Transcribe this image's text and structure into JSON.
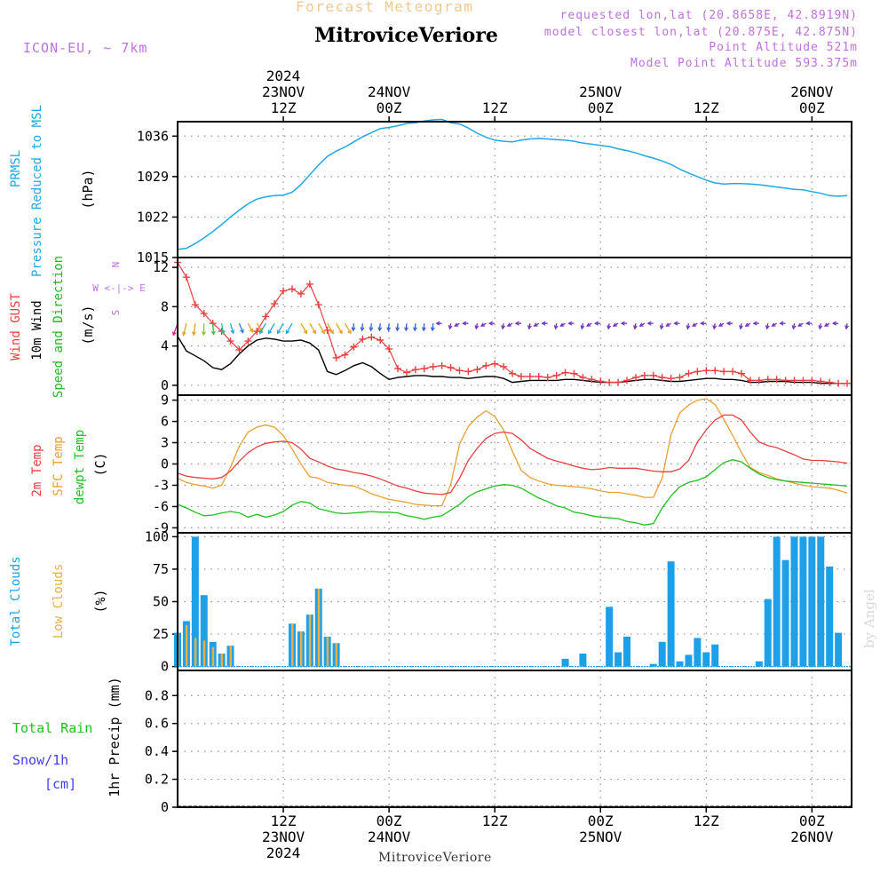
{
  "header": {
    "title_top": "Forecast Meteogram",
    "location": "MitroviceVeriore",
    "model": "ICON-EU, ~ 7km",
    "requested": "requested lon,lat (20.8658E, 42.8919N)",
    "closest": "model closest lon,lat (20.875E, 42.875N)",
    "point_alt": "Point Altitude 521m",
    "model_alt": "Model Point Altitude 593.375m",
    "footer_location": "MitroviceVeriore",
    "credit": "by Angel"
  },
  "time_axis": {
    "top_ticks": [
      {
        "h": 12,
        "l1": "2024",
        "l2": "23NOV",
        "l3": "12Z"
      },
      {
        "h": 24,
        "l1": "",
        "l2": "24NOV",
        "l3": "00Z"
      },
      {
        "h": 36,
        "l1": "",
        "l2": "",
        "l3": "12Z"
      },
      {
        "h": 48,
        "l1": "",
        "l2": "25NOV",
        "l3": "00Z"
      },
      {
        "h": 60,
        "l1": "",
        "l2": "",
        "l3": "12Z"
      },
      {
        "h": 72,
        "l1": "",
        "l2": "26NOV",
        "l3": "00Z"
      }
    ],
    "bottom_ticks": [
      {
        "h": 12,
        "l1": "12Z",
        "l2": "23NOV",
        "l3": "2024"
      },
      {
        "h": 24,
        "l1": "00Z",
        "l2": "24NOV",
        "l3": ""
      },
      {
        "h": 36,
        "l1": "12Z",
        "l2": "",
        "l3": ""
      },
      {
        "h": 48,
        "l1": "00Z",
        "l2": "25NOV",
        "l3": ""
      },
      {
        "h": 60,
        "l1": "12Z",
        "l2": "",
        "l3": ""
      },
      {
        "h": 72,
        "l1": "00Z",
        "l2": "26NOV",
        "l3": ""
      }
    ],
    "hours_range": [
      0,
      76.5
    ]
  },
  "colors": {
    "pressure": "#1ea8e8",
    "gust": "#e84040",
    "wind": "#000000",
    "direction": "#20b820",
    "temp2m": "#e84040",
    "sfc": "#e8a030",
    "dewpt": "#20c020",
    "total_clouds": "#1ea0e8",
    "low_clouds": "#e8b040",
    "rain": "#20c020",
    "snow": "#4040e8",
    "meta": "#c070e0",
    "title_top": "#f0c890",
    "axis": "#000000",
    "grid": "#909090"
  },
  "panels": {
    "pressure": {
      "labels": [
        "PRMSL",
        "Pressure Reduced to MSL"
      ],
      "unit": "(hPa)"
    },
    "wind": {
      "labels": [
        "Wind GUST",
        "10m Wind",
        "Speed and Direction"
      ],
      "unit": "(m/s)",
      "compass": [
        "N",
        "W <-|-> E",
        "S"
      ]
    },
    "temp": {
      "labels": [
        "2m Temp",
        "SFC Temp",
        "dewpt Temp"
      ],
      "unit": "(C)"
    },
    "clouds": {
      "labels": [
        "Total Clouds",
        "Low Clouds"
      ],
      "unit": "(%)"
    },
    "precip": {
      "labels": [
        "Total   Rain",
        "Snow/1h",
        "[cm]"
      ],
      "unit": "1hr Precip (mm)"
    }
  },
  "chart_data": [
    {
      "type": "line",
      "title": "PRMSL Pressure Reduced to MSL",
      "ylabel": "(hPa)",
      "ylim": [
        1015,
        1038.5
      ],
      "yticks": [
        1015,
        1022,
        1029,
        1036
      ],
      "x_hours": [
        0,
        1,
        2,
        3,
        4,
        5,
        6,
        7,
        8,
        9,
        10,
        11,
        12,
        13,
        14,
        15,
        16,
        17,
        18,
        19,
        20,
        21,
        22,
        23,
        24,
        25,
        26,
        27,
        28,
        29,
        30,
        31,
        32,
        33,
        34,
        35,
        36,
        37,
        38,
        39,
        40,
        41,
        42,
        43,
        44,
        45,
        46,
        47,
        48,
        49,
        50,
        51,
        52,
        53,
        54,
        55,
        56,
        57,
        58,
        59,
        60,
        61,
        62,
        63,
        64,
        65,
        66,
        67,
        68,
        69,
        70,
        71,
        72,
        73,
        74,
        75,
        76
      ],
      "series": [
        {
          "name": "PRMSL",
          "values": [
            1016.4,
            1016.6,
            1017.4,
            1018.4,
            1019.5,
            1020.7,
            1022.0,
            1023.2,
            1024.3,
            1025.1,
            1025.5,
            1025.7,
            1025.8,
            1026.3,
            1027.6,
            1029.3,
            1031.0,
            1032.5,
            1033.4,
            1034.1,
            1035.0,
            1035.9,
            1036.6,
            1037.3,
            1037.5,
            1037.8,
            1038.2,
            1038.3,
            1038.6,
            1038.8,
            1038.9,
            1038.3,
            1038.1,
            1037.4,
            1036.5,
            1035.8,
            1035.3,
            1035.1,
            1035.0,
            1035.3,
            1035.5,
            1035.6,
            1035.5,
            1035.4,
            1035.3,
            1035.1,
            1034.8,
            1034.6,
            1034.4,
            1034.2,
            1033.8,
            1033.5,
            1033.1,
            1032.6,
            1032.2,
            1031.7,
            1031.1,
            1030.3,
            1029.6,
            1029.0,
            1028.4,
            1027.9,
            1027.7,
            1027.8,
            1027.8,
            1027.7,
            1027.6,
            1027.4,
            1027.2,
            1027.0,
            1026.8,
            1026.7,
            1026.4,
            1026.1,
            1025.7,
            1025.6,
            1025.7
          ]
        }
      ]
    },
    {
      "type": "line",
      "title": "Wind GUST / 10m Wind Speed and Direction",
      "ylabel": "(m/s)",
      "ylim": [
        -1,
        13
      ],
      "yticks": [
        0,
        4,
        8,
        12
      ],
      "x_hours": [
        0,
        1,
        2,
        3,
        4,
        5,
        6,
        7,
        8,
        9,
        10,
        11,
        12,
        13,
        14,
        15,
        16,
        17,
        18,
        19,
        20,
        21,
        22,
        23,
        24,
        25,
        26,
        27,
        28,
        29,
        30,
        31,
        32,
        33,
        34,
        35,
        36,
        37,
        38,
        39,
        40,
        41,
        42,
        43,
        44,
        45,
        46,
        47,
        48,
        49,
        50,
        51,
        52,
        53,
        54,
        55,
        56,
        57,
        58,
        59,
        60,
        61,
        62,
        63,
        64,
        65,
        66,
        67,
        68,
        69,
        70,
        71,
        72,
        73,
        74,
        75,
        76
      ],
      "series": [
        {
          "name": "Wind GUST",
          "values": [
            12.5,
            11.0,
            8.2,
            7.3,
            6.3,
            5.5,
            4.5,
            3.6,
            4.5,
            5.5,
            7.0,
            8.3,
            9.6,
            9.8,
            9.3,
            10.3,
            8.2,
            5.6,
            2.8,
            3.1,
            3.9,
            4.7,
            4.9,
            4.6,
            3.7,
            1.7,
            1.3,
            1.6,
            1.7,
            1.9,
            2.0,
            1.8,
            1.5,
            1.4,
            1.6,
            2.0,
            2.2,
            1.9,
            1.2,
            0.9,
            0.9,
            0.9,
            0.8,
            1.0,
            1.3,
            1.2,
            0.8,
            0.6,
            0.4,
            0.3,
            0.3,
            0.5,
            0.8,
            1.0,
            1.0,
            0.8,
            0.7,
            0.8,
            1.2,
            1.4,
            1.5,
            1.5,
            1.4,
            1.4,
            1.2,
            0.5,
            0.5,
            0.6,
            0.6,
            0.5,
            0.5,
            0.5,
            0.5,
            0.4,
            0.3,
            0.2,
            0.2
          ]
        },
        {
          "name": "10m Wind",
          "values": [
            5.0,
            3.5,
            3.0,
            2.5,
            1.8,
            1.6,
            2.2,
            3.2,
            4.0,
            4.6,
            4.8,
            4.7,
            4.5,
            4.5,
            4.6,
            4.3,
            3.6,
            1.4,
            1.1,
            1.5,
            2.0,
            2.3,
            1.9,
            1.2,
            0.6,
            0.8,
            0.9,
            1.0,
            1.0,
            0.9,
            0.9,
            0.8,
            0.8,
            0.7,
            0.8,
            0.9,
            0.9,
            0.7,
            0.3,
            0.4,
            0.5,
            0.5,
            0.5,
            0.5,
            0.6,
            0.6,
            0.5,
            0.4,
            0.3,
            0.3,
            0.3,
            0.4,
            0.5,
            0.6,
            0.6,
            0.5,
            0.4,
            0.4,
            0.5,
            0.6,
            0.7,
            0.7,
            0.6,
            0.6,
            0.5,
            0.3,
            0.3,
            0.4,
            0.4,
            0.4,
            0.3,
            0.3,
            0.3,
            0.2,
            0.2,
            0.2,
            0.2
          ]
        }
      ]
    },
    {
      "type": "line",
      "title": "2m Temp / SFC Temp / dewpt Temp",
      "ylabel": "(C)",
      "ylim": [
        -9.7,
        9.7
      ],
      "yticks": [
        -9,
        -6,
        -3,
        0,
        3,
        6,
        9
      ],
      "x_hours": [
        0,
        1,
        2,
        3,
        4,
        5,
        6,
        7,
        8,
        9,
        10,
        11,
        12,
        13,
        14,
        15,
        16,
        17,
        18,
        19,
        20,
        21,
        22,
        23,
        24,
        25,
        26,
        27,
        28,
        29,
        30,
        31,
        32,
        33,
        34,
        35,
        36,
        37,
        38,
        39,
        40,
        41,
        42,
        43,
        44,
        45,
        46,
        47,
        48,
        49,
        50,
        51,
        52,
        53,
        54,
        55,
        56,
        57,
        58,
        59,
        60,
        61,
        62,
        63,
        64,
        65,
        66,
        67,
        68,
        69,
        70,
        71,
        72,
        73,
        74,
        75,
        76
      ],
      "series": [
        {
          "name": "2m Temp",
          "values": [
            -1.3,
            -1.7,
            -1.9,
            -2.0,
            -2.1,
            -1.9,
            -1.0,
            0.4,
            1.6,
            2.4,
            2.9,
            3.1,
            3.2,
            3.0,
            2.1,
            0.8,
            0.3,
            -0.3,
            -0.7,
            -0.9,
            -1.2,
            -1.4,
            -1.7,
            -2.1,
            -2.6,
            -3.1,
            -3.4,
            -3.8,
            -4.1,
            -4.2,
            -4.3,
            -4.0,
            -2.0,
            0.5,
            2.2,
            3.6,
            4.3,
            4.5,
            4.3,
            3.4,
            2.2,
            1.5,
            0.8,
            0.4,
            0.1,
            -0.3,
            -0.6,
            -0.8,
            -0.7,
            -0.5,
            -0.6,
            -0.6,
            -0.6,
            -0.8,
            -1.0,
            -1.1,
            -1.1,
            -0.7,
            0.5,
            3.1,
            4.8,
            6.2,
            6.9,
            6.9,
            6.2,
            4.5,
            3.1,
            2.6,
            2.3,
            1.8,
            1.3,
            0.7,
            0.5,
            0.5,
            0.4,
            0.3,
            0.1
          ]
        },
        {
          "name": "SFC Temp",
          "values": [
            -2.0,
            -2.6,
            -2.9,
            -3.1,
            -3.4,
            -3.0,
            -0.5,
            2.5,
            4.5,
            5.2,
            5.5,
            5.2,
            4.0,
            2.1,
            0.0,
            -1.8,
            -2.0,
            -2.6,
            -2.8,
            -3.0,
            -3.1,
            -3.6,
            -4.2,
            -4.6,
            -5.0,
            -5.2,
            -5.4,
            -5.7,
            -5.8,
            -5.9,
            -5.9,
            -2.9,
            2.8,
            5.3,
            6.6,
            7.5,
            6.7,
            4.8,
            1.8,
            -0.9,
            -1.9,
            -2.4,
            -2.8,
            -3.0,
            -3.1,
            -3.2,
            -3.3,
            -3.5,
            -3.8,
            -4.0,
            -4.0,
            -4.2,
            -4.4,
            -4.7,
            -4.7,
            -2.0,
            4.1,
            7.2,
            8.3,
            9.0,
            9.2,
            8.4,
            6.3,
            4.0,
            1.6,
            -0.5,
            -1.2,
            -1.6,
            -2.1,
            -2.4,
            -2.7,
            -3.0,
            -3.2,
            -3.3,
            -3.4,
            -3.7,
            -4.1
          ]
        },
        {
          "name": "dewpt Temp",
          "values": [
            -5.7,
            -6.2,
            -6.8,
            -7.3,
            -7.2,
            -6.9,
            -6.7,
            -6.9,
            -7.5,
            -7.1,
            -7.5,
            -7.2,
            -6.7,
            -5.8,
            -5.3,
            -5.5,
            -6.3,
            -6.6,
            -6.9,
            -7.0,
            -6.9,
            -6.8,
            -6.7,
            -6.8,
            -6.8,
            -6.9,
            -7.3,
            -7.5,
            -7.8,
            -7.5,
            -7.3,
            -6.5,
            -5.7,
            -4.6,
            -3.9,
            -3.5,
            -3.1,
            -2.9,
            -3.0,
            -3.4,
            -4.1,
            -4.8,
            -5.3,
            -5.9,
            -6.2,
            -6.8,
            -7.0,
            -7.3,
            -7.5,
            -7.6,
            -7.7,
            -8.1,
            -8.3,
            -8.6,
            -8.4,
            -6.2,
            -4.5,
            -3.2,
            -2.6,
            -2.3,
            -1.8,
            -0.8,
            0.2,
            0.6,
            0.3,
            -0.6,
            -1.4,
            -1.9,
            -2.2,
            -2.4,
            -2.5,
            -2.6,
            -2.7,
            -2.8,
            -2.9,
            -3.0,
            -3.1
          ]
        }
      ]
    },
    {
      "type": "bar",
      "title": "Total Clouds / Low Clouds",
      "ylabel": "(%)",
      "ylim": [
        -3,
        103
      ],
      "yticks": [
        0,
        25,
        50,
        75,
        100
      ],
      "x_hours": [
        0,
        1,
        2,
        3,
        4,
        5,
        6,
        7,
        8,
        9,
        10,
        11,
        12,
        13,
        14,
        15,
        16,
        17,
        18,
        19,
        20,
        21,
        22,
        23,
        24,
        25,
        26,
        27,
        28,
        29,
        30,
        31,
        32,
        33,
        34,
        35,
        36,
        37,
        38,
        39,
        40,
        41,
        42,
        43,
        44,
        45,
        46,
        47,
        48,
        49,
        50,
        51,
        52,
        53,
        54,
        55,
        56,
        57,
        58,
        59,
        60,
        61,
        62,
        63,
        64,
        65,
        66,
        67,
        68,
        69,
        70,
        71,
        72,
        73,
        74,
        75,
        76
      ],
      "series": [
        {
          "name": "Total Clouds",
          "values": [
            26,
            35,
            100,
            55,
            19,
            10,
            16,
            0,
            0,
            0,
            0,
            0,
            0,
            33,
            27,
            40,
            60,
            23,
            18,
            0,
            0,
            0,
            0,
            0,
            0,
            0,
            0,
            0,
            0,
            0,
            0,
            0,
            0,
            0,
            0,
            0,
            0,
            0,
            0,
            0,
            0,
            0,
            0,
            0,
            6,
            0,
            10,
            0,
            0,
            46,
            11,
            23,
            0,
            0,
            2,
            19,
            81,
            4,
            9,
            22,
            11,
            17,
            0,
            0,
            0,
            0,
            4,
            52,
            100,
            82,
            100,
            100,
            100,
            100,
            77,
            26,
            0
          ]
        },
        {
          "name": "Low Clouds",
          "values": [
            26,
            32,
            22,
            20,
            15,
            10,
            16,
            0,
            0,
            0,
            0,
            0,
            0,
            33,
            27,
            40,
            60,
            23,
            18,
            0,
            0,
            0,
            0,
            0,
            0,
            0,
            0,
            0,
            0,
            0,
            0,
            0,
            0,
            0,
            0,
            0,
            0,
            0,
            0,
            0,
            0,
            0,
            0,
            0,
            0,
            0,
            0,
            0,
            0,
            0,
            0,
            0,
            0,
            0,
            0,
            0,
            0,
            0,
            0,
            0,
            0,
            0,
            0,
            0,
            0,
            0,
            0,
            0,
            0,
            0,
            0,
            0,
            0,
            0,
            0,
            0,
            0
          ]
        }
      ]
    },
    {
      "type": "bar",
      "title": "1hr Precip",
      "ylabel": "1hr Precip (mm)",
      "ylim": [
        0,
        0.98
      ],
      "yticks": [
        0,
        0.2,
        0.4,
        0.6,
        0.8
      ],
      "series": [
        {
          "name": "Total Rain",
          "values": []
        },
        {
          "name": "Snow/1h",
          "values": []
        }
      ]
    }
  ]
}
